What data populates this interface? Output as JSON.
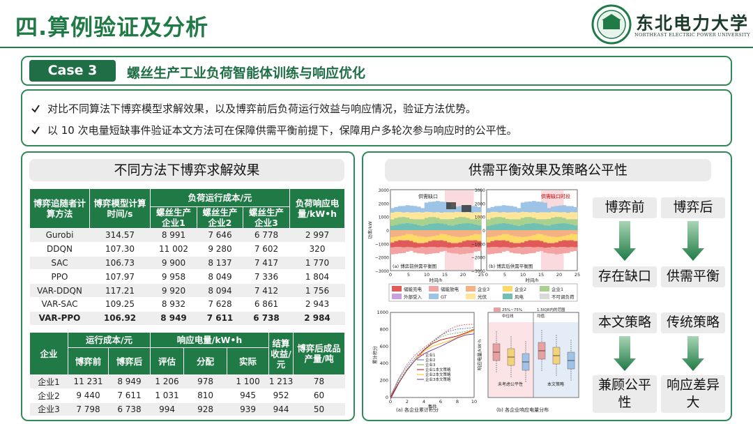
{
  "header": {
    "title": "四.算例验证及分析",
    "logo_name": "东北电力大学",
    "logo_subtitle": "NORTHEAST ELECTRIC POWER UNIVERSITY"
  },
  "case": {
    "label": "Case 3",
    "title": "螺丝生产工业负荷智能体训练与响应优化"
  },
  "bullets": [
    "对比不同算法下博弈模型求解效果，以及博弈前后负荷运行效益与响应情况，验证方法优势。",
    "以 10 次电量短缺事件验证本文方法可在保障供需平衡前提下，保障用户多轮次参与响应时的公平性。"
  ],
  "left_panel": {
    "title": "不同方法下博弈求解效果",
    "table1": {
      "headers": [
        "博弈追随者计算方法",
        "博弈模型计算时间/s",
        "负荷运行成本/元",
        "负荷响应电量/kW•h"
      ],
      "subheaders": [
        "螺丝生产企业1",
        "螺丝生产企业2",
        "螺丝生产企业3"
      ],
      "rows": [
        [
          "Gurobi",
          "314.57",
          "8 991",
          "7 646",
          "6 778",
          "2 997"
        ],
        [
          "DDQN",
          "107.30",
          "11 002",
          "9 280",
          "7 602",
          "320"
        ],
        [
          "SAC",
          "106.73",
          "9 900",
          "8 137",
          "7 417",
          "1 770"
        ],
        [
          "PPO",
          "107.97",
          "9 958",
          "8 049",
          "7 336",
          "1 804"
        ],
        [
          "VAR-DDQN",
          "117.21",
          "9 920",
          "8 094",
          "7 412",
          "1 756"
        ],
        [
          "VAR-SAC",
          "109.25",
          "8 932",
          "7 628",
          "6 861",
          "2 943"
        ],
        [
          "VAR-PPO",
          "106.92",
          "8 949",
          "7 611",
          "6 738",
          "2 984"
        ]
      ]
    },
    "table2": {
      "headers": [
        "企业",
        "运行成本/元",
        "响应电量/kW•h",
        "结算收益/元",
        "博弈后成品产量/吨"
      ],
      "subheaders": [
        "博弈前",
        "博弈后",
        "评估",
        "分配",
        "实际"
      ],
      "rows": [
        [
          "企业1",
          "11 231",
          "8 949",
          "1 206",
          "978",
          "1 100",
          "1 213",
          "78"
        ],
        [
          "企业2",
          "9 440",
          "7 611",
          "1 031",
          "810",
          "945",
          "952",
          "60"
        ],
        [
          "企业3",
          "7 798",
          "6 738",
          "994",
          "928",
          "939",
          "944",
          "50"
        ]
      ]
    }
  },
  "right_panel": {
    "title": "供需平衡效果及策略公平性",
    "flow": [
      [
        "博弈前",
        "存在缺口",
        "本文策略",
        "兼顾公平性"
      ],
      [
        "博弈后",
        "供需平衡",
        "传统策略",
        "响应差异大"
      ]
    ],
    "charts": {
      "balance": {
        "y_label": "功率/kW",
        "x_label": "时间/h",
        "yticks": [
          "3000",
          "2000",
          "1000",
          "0",
          "−1000",
          "−2000",
          "−3000"
        ],
        "xticks": [
          "0",
          "5",
          "10",
          "15",
          "20",
          "25"
        ],
        "annotation_a": "供需缺口",
        "annotation_b": "供需缺口时段",
        "caption_a": "(a) 博弈前供需平衡图",
        "caption_b": "(b) 博弈后供需平衡图",
        "legend": [
          {
            "name": "储能充电",
            "color": "#e05a5a"
          },
          {
            "name": "储能放电",
            "color": "#f4a3a3"
          },
          {
            "name": "企业3",
            "color": "#f4b183"
          },
          {
            "name": "企业2",
            "color": "#ffd966"
          },
          {
            "name": "企业1",
            "color": "#a9d18e"
          },
          {
            "name": "外部受入",
            "color": "#c9a0dc"
          },
          {
            "name": "GT",
            "color": "#9dc3e6"
          },
          {
            "name": "光伏",
            "color": "#ffe699"
          },
          {
            "name": "风电",
            "color": "#70c1b3"
          },
          {
            "name": "不可调负荷",
            "color": "#d9d9d9"
          }
        ]
      },
      "score": {
        "y_label": "累计积分",
        "x_label": "事件",
        "yticks": [
          "0",
          "200",
          "400",
          "600",
          "800",
          "1000"
        ],
        "xticks": [
          "0",
          "2",
          "4",
          "6",
          "8",
          "10"
        ],
        "legend": [
          "企业1",
          "企业2",
          "企业3",
          "企业1本文策略",
          "企业2本文策略",
          "企业3本文策略"
        ],
        "caption": "(a) 各企业累计积分"
      },
      "response": {
        "y_label": "响应电量/kW·h",
        "legend": [
          "25%~75%",
          "1.5IQR内的范围",
          "中位线",
          "均值"
        ],
        "groups": [
          "未考虑公平性",
          "本文策略"
        ],
        "caption": "(b) 各企业响应电量分布"
      }
    }
  }
}
